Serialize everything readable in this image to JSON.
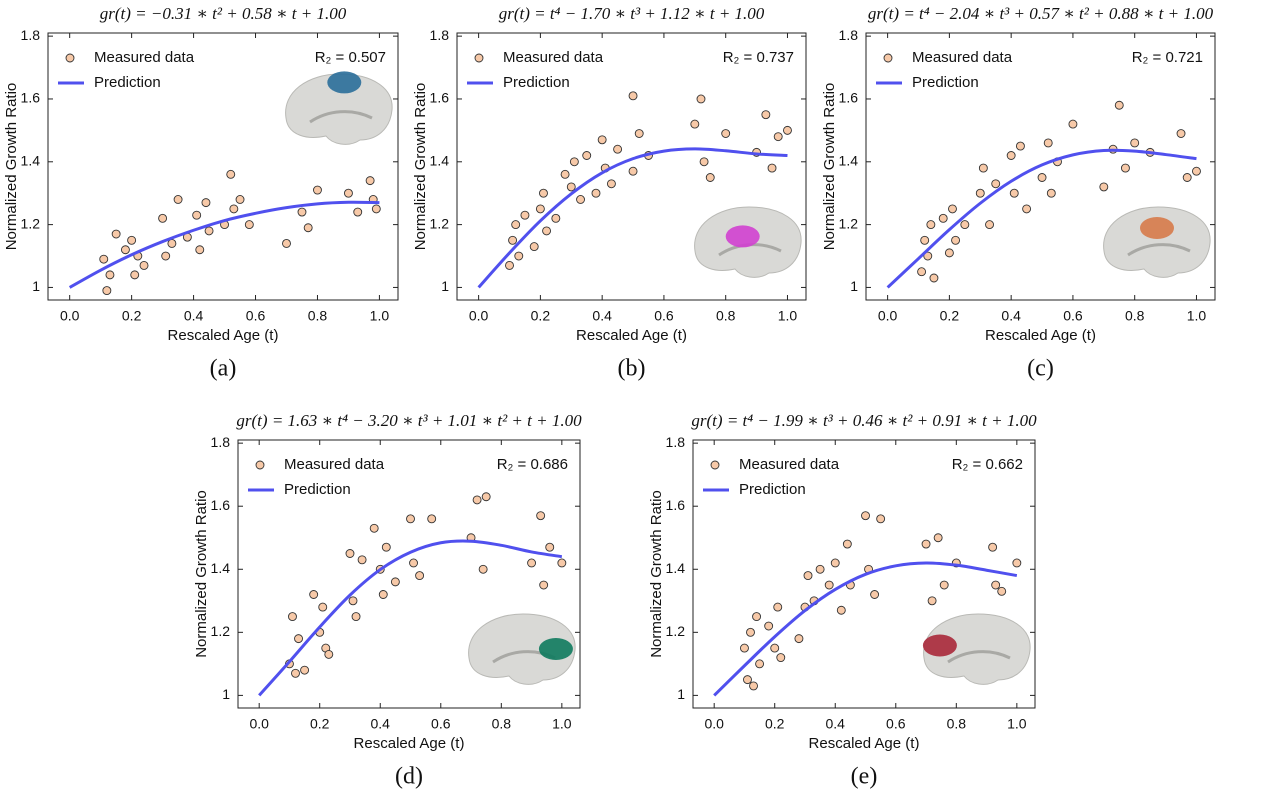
{
  "chart_data": [
    {
      "type": "scatter",
      "title": "gr(t) = −0.31 ∗ t² + 0.58 ∗ t + 1.00",
      "r2": "R₂ = 0.507",
      "panel_label": "(a)",
      "x_label": "Rescaled Age (t)",
      "y_label": "Normalized Growth Ratio",
      "xlim": [
        -0.07,
        1.06
      ],
      "ylim": [
        0.96,
        1.81
      ],
      "xticks": [
        {
          "value": 0,
          "label": "0.0"
        },
        0.2,
        0.4,
        0.6,
        0.8,
        {
          "value": 1,
          "label": "1.0"
        }
      ],
      "yticks": [
        1,
        1.2,
        1.4,
        1.6,
        1.8
      ],
      "series": [
        {
          "name": "Measured data",
          "color": "#f7c9a8",
          "x": [
            0.11,
            0.12,
            0.13,
            0.15,
            0.18,
            0.2,
            0.21,
            0.22,
            0.24,
            0.3,
            0.31,
            0.33,
            0.35,
            0.38,
            0.41,
            0.42,
            0.44,
            0.45,
            0.5,
            0.52,
            0.53,
            0.55,
            0.58,
            0.7,
            0.75,
            0.77,
            0.8,
            0.9,
            0.93,
            0.97,
            0.98,
            0.99
          ],
          "values": [
            1.09,
            0.99,
            1.04,
            1.17,
            1.12,
            1.15,
            1.04,
            1.1,
            1.07,
            1.22,
            1.1,
            1.14,
            1.28,
            1.16,
            1.23,
            1.12,
            1.27,
            1.18,
            1.2,
            1.36,
            1.25,
            1.28,
            1.2,
            1.14,
            1.24,
            1.19,
            1.31,
            1.3,
            1.24,
            1.34,
            1.28,
            1.25
          ]
        },
        {
          "name": "Prediction",
          "color": "#5050ee",
          "x": [
            0,
            0.1,
            0.2,
            0.3,
            0.4,
            0.5,
            0.6,
            0.7,
            0.8,
            0.9,
            1
          ],
          "values": [
            1,
            1.055,
            1.104,
            1.146,
            1.182,
            1.213,
            1.236,
            1.254,
            1.266,
            1.271,
            1.27
          ]
        }
      ]
    },
    {
      "type": "scatter",
      "title": "gr(t) = t⁴ − 1.70 ∗ t³ + 1.12 ∗ t + 1.00",
      "r2": "R₂ = 0.737",
      "panel_label": "(b)",
      "x_label": "Rescaled Age (t)",
      "y_label": "Normalized Growth Ratio",
      "xlim": [
        -0.07,
        1.06
      ],
      "ylim": [
        0.96,
        1.81
      ],
      "xticks": [
        {
          "value": 0,
          "label": "0.0"
        },
        0.2,
        0.4,
        0.6,
        0.8,
        {
          "value": 1,
          "label": "1.0"
        }
      ],
      "yticks": [
        1,
        1.2,
        1.4,
        1.6,
        1.8
      ],
      "series": [
        {
          "name": "Measured data",
          "color": "#f7c9a8",
          "x": [
            0.1,
            0.11,
            0.12,
            0.13,
            0.15,
            0.18,
            0.2,
            0.21,
            0.22,
            0.25,
            0.28,
            0.3,
            0.31,
            0.33,
            0.35,
            0.38,
            0.4,
            0.41,
            0.43,
            0.45,
            0.5,
            0.5,
            0.52,
            0.55,
            0.7,
            0.72,
            0.73,
            0.75,
            0.8,
            0.9,
            0.93,
            0.95,
            0.97,
            1.0
          ],
          "values": [
            1.07,
            1.15,
            1.2,
            1.1,
            1.23,
            1.13,
            1.25,
            1.3,
            1.18,
            1.22,
            1.36,
            1.32,
            1.4,
            1.28,
            1.42,
            1.3,
            1.47,
            1.38,
            1.33,
            1.44,
            1.61,
            1.37,
            1.49,
            1.42,
            1.52,
            1.6,
            1.4,
            1.35,
            1.49,
            1.43,
            1.55,
            1.38,
            1.48,
            1.5
          ]
        },
        {
          "name": "Prediction",
          "color": "#5050ee",
          "x": [
            0,
            0.1,
            0.2,
            0.3,
            0.4,
            0.5,
            0.6,
            0.7,
            0.8,
            0.9,
            1
          ],
          "values": [
            1,
            1.11,
            1.212,
            1.298,
            1.365,
            1.41,
            1.434,
            1.441,
            1.435,
            1.425,
            1.42
          ]
        }
      ]
    },
    {
      "type": "scatter",
      "title": "gr(t) = t⁴ − 2.04 ∗ t³ + 0.57 ∗ t² + 0.88 ∗ t + 1.00",
      "r2": "R₂ = 0.721",
      "panel_label": "(c)",
      "x_label": "Rescaled Age (t)",
      "y_label": "Normalized Growth Ratio",
      "xlim": [
        -0.07,
        1.06
      ],
      "ylim": [
        0.96,
        1.81
      ],
      "xticks": [
        {
          "value": 0,
          "label": "0.0"
        },
        0.2,
        0.4,
        0.6,
        0.8,
        {
          "value": 1,
          "label": "1.0"
        }
      ],
      "yticks": [
        1,
        1.2,
        1.4,
        1.6,
        1.8
      ],
      "series": [
        {
          "name": "Measured data",
          "color": "#f7c9a8",
          "x": [
            0.11,
            0.12,
            0.13,
            0.14,
            0.15,
            0.18,
            0.2,
            0.21,
            0.22,
            0.25,
            0.3,
            0.31,
            0.33,
            0.35,
            0.4,
            0.41,
            0.43,
            0.45,
            0.5,
            0.52,
            0.53,
            0.55,
            0.6,
            0.7,
            0.73,
            0.75,
            0.77,
            0.8,
            0.85,
            0.95,
            0.97,
            1.0
          ],
          "values": [
            1.05,
            1.15,
            1.1,
            1.2,
            1.03,
            1.22,
            1.11,
            1.25,
            1.15,
            1.2,
            1.3,
            1.38,
            1.2,
            1.33,
            1.42,
            1.3,
            1.45,
            1.25,
            1.35,
            1.46,
            1.3,
            1.4,
            1.52,
            1.32,
            1.44,
            1.58,
            1.38,
            1.46,
            1.43,
            1.49,
            1.35,
            1.37
          ]
        },
        {
          "name": "Prediction",
          "color": "#5050ee",
          "x": [
            0,
            0.1,
            0.2,
            0.3,
            0.4,
            0.5,
            0.6,
            0.7,
            0.8,
            0.9,
            1
          ],
          "values": [
            1,
            1.092,
            1.184,
            1.268,
            1.338,
            1.39,
            1.422,
            1.436,
            1.434,
            1.423,
            1.41
          ]
        }
      ]
    },
    {
      "type": "scatter",
      "title": "gr(t) = 1.63 ∗ t⁴ − 3.20 ∗ t³ + 1.01 ∗ t² + t + 1.00",
      "r2": "R₂ = 0.686",
      "panel_label": "(d)",
      "x_label": "Rescaled Age (t)",
      "y_label": "Normalized Growth Ratio",
      "xlim": [
        -0.07,
        1.06
      ],
      "ylim": [
        0.96,
        1.81
      ],
      "xticks": [
        {
          "value": 0,
          "label": "0.0"
        },
        0.2,
        0.4,
        0.6,
        0.8,
        {
          "value": 1,
          "label": "1.0"
        }
      ],
      "yticks": [
        1,
        1.2,
        1.4,
        1.6,
        1.8
      ],
      "series": [
        {
          "name": "Measured data",
          "color": "#f7c9a8",
          "x": [
            0.1,
            0.11,
            0.12,
            0.13,
            0.15,
            0.18,
            0.2,
            0.21,
            0.22,
            0.23,
            0.3,
            0.31,
            0.32,
            0.34,
            0.38,
            0.4,
            0.41,
            0.42,
            0.45,
            0.5,
            0.51,
            0.53,
            0.57,
            0.7,
            0.72,
            0.74,
            0.75,
            0.9,
            0.93,
            0.94,
            0.96,
            1.0
          ],
          "values": [
            1.1,
            1.25,
            1.07,
            1.18,
            1.08,
            1.32,
            1.2,
            1.28,
            1.15,
            1.13,
            1.45,
            1.3,
            1.25,
            1.43,
            1.53,
            1.4,
            1.32,
            1.47,
            1.36,
            1.56,
            1.42,
            1.38,
            1.56,
            1.5,
            1.62,
            1.4,
            1.63,
            1.42,
            1.57,
            1.35,
            1.47,
            1.42
          ]
        },
        {
          "name": "Prediction",
          "color": "#5050ee",
          "x": [
            0,
            0.1,
            0.2,
            0.3,
            0.4,
            0.5,
            0.6,
            0.7,
            0.8,
            0.9,
            1
          ],
          "values": [
            1,
            1.107,
            1.217,
            1.318,
            1.399,
            1.454,
            1.484,
            1.489,
            1.476,
            1.455,
            1.44
          ]
        }
      ]
    },
    {
      "type": "scatter",
      "title": "gr(t) = t⁴ − 1.99 ∗ t³ + 0.46 ∗ t² + 0.91 ∗ t + 1.00",
      "r2": "R₂ = 0.662",
      "panel_label": "(e)",
      "x_label": "Rescaled Age (t)",
      "y_label": "Normalized Growth Ratio",
      "xlim": [
        -0.07,
        1.06
      ],
      "ylim": [
        0.96,
        1.81
      ],
      "xticks": [
        {
          "value": 0,
          "label": "0.0"
        },
        0.2,
        0.4,
        0.6,
        0.8,
        {
          "value": 1,
          "label": "1.0"
        }
      ],
      "yticks": [
        1,
        1.2,
        1.4,
        1.6,
        1.8
      ],
      "series": [
        {
          "name": "Measured data",
          "color": "#f7c9a8",
          "x": [
            0.1,
            0.11,
            0.12,
            0.13,
            0.14,
            0.15,
            0.18,
            0.2,
            0.21,
            0.22,
            0.28,
            0.3,
            0.31,
            0.33,
            0.35,
            0.38,
            0.4,
            0.42,
            0.44,
            0.45,
            0.5,
            0.51,
            0.53,
            0.55,
            0.7,
            0.72,
            0.74,
            0.76,
            0.8,
            0.92,
            0.93,
            0.95,
            1.0
          ],
          "values": [
            1.15,
            1.05,
            1.2,
            1.03,
            1.25,
            1.1,
            1.22,
            1.15,
            1.28,
            1.12,
            1.18,
            1.28,
            1.38,
            1.3,
            1.4,
            1.35,
            1.42,
            1.27,
            1.48,
            1.35,
            1.57,
            1.4,
            1.32,
            1.56,
            1.48,
            1.3,
            1.5,
            1.35,
            1.42,
            1.47,
            1.35,
            1.33,
            1.42
          ]
        },
        {
          "name": "Prediction",
          "color": "#5050ee",
          "x": [
            0,
            0.1,
            0.2,
            0.3,
            0.4,
            0.5,
            0.6,
            0.7,
            0.8,
            0.9,
            1
          ],
          "values": [
            1,
            1.094,
            1.186,
            1.269,
            1.336,
            1.384,
            1.411,
            1.42,
            1.413,
            1.397,
            1.38
          ]
        }
      ]
    }
  ]
}
